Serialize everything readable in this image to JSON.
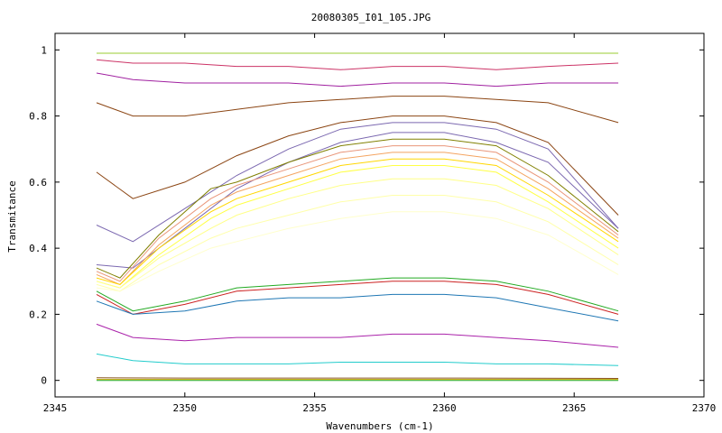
{
  "chart_data": {
    "type": "line",
    "title": "20080305_I01_105.JPG",
    "xlabel": "Wavenumbers (cm-1)",
    "ylabel": "Transmitance",
    "xlim": [
      2345,
      2370
    ],
    "ylim": [
      -0.05,
      1.05
    ],
    "xticks": [
      2345,
      2350,
      2355,
      2360,
      2365,
      2370
    ],
    "yticks": [
      0,
      0.2,
      0.4,
      0.6,
      0.8,
      1
    ],
    "ytick_labels": [
      "0",
      "0.2",
      "0.4",
      "0.6",
      "0.8",
      "1"
    ],
    "grid": false,
    "legend": "none",
    "x_range_of_data": [
      2346.6,
      2366.7
    ],
    "series": [
      {
        "color": "#9acd32",
        "x": [
          2346.6,
          2348,
          2350,
          2352,
          2354,
          2356,
          2358,
          2360,
          2362,
          2364,
          2366.7
        ],
        "y": [
          0.99,
          0.99,
          0.99,
          0.99,
          0.99,
          0.99,
          0.99,
          0.99,
          0.99,
          0.99,
          0.99
        ]
      },
      {
        "color": "#cc3366",
        "x": [
          2346.6,
          2348,
          2350,
          2352,
          2354,
          2356,
          2358,
          2360,
          2362,
          2364,
          2366.7
        ],
        "y": [
          0.97,
          0.96,
          0.96,
          0.95,
          0.95,
          0.94,
          0.95,
          0.95,
          0.94,
          0.95,
          0.96
        ]
      },
      {
        "color": "#a020a0",
        "x": [
          2346.6,
          2348,
          2350,
          2352,
          2354,
          2356,
          2358,
          2360,
          2362,
          2364,
          2366.7
        ],
        "y": [
          0.93,
          0.91,
          0.9,
          0.9,
          0.9,
          0.89,
          0.9,
          0.9,
          0.89,
          0.9,
          0.9
        ]
      },
      {
        "color": "#8b4513",
        "x": [
          2346.6,
          2348,
          2350,
          2352,
          2354,
          2356,
          2358,
          2360,
          2362,
          2364,
          2366.7
        ],
        "y": [
          0.84,
          0.8,
          0.8,
          0.82,
          0.84,
          0.85,
          0.86,
          0.86,
          0.85,
          0.84,
          0.78
        ]
      },
      {
        "color": "#8b4513",
        "x": [
          2346.6,
          2348,
          2350,
          2352,
          2354,
          2356,
          2358,
          2360,
          2362,
          2364,
          2366.7
        ],
        "y": [
          0.63,
          0.55,
          0.6,
          0.68,
          0.74,
          0.78,
          0.8,
          0.8,
          0.78,
          0.72,
          0.5
        ]
      },
      {
        "color": "#7b68b0",
        "x": [
          2346.6,
          2348,
          2350,
          2352,
          2354,
          2356,
          2358,
          2360,
          2362,
          2364,
          2366.7
        ],
        "y": [
          0.47,
          0.42,
          0.52,
          0.62,
          0.7,
          0.76,
          0.78,
          0.78,
          0.76,
          0.7,
          0.46
        ]
      },
      {
        "color": "#7b68b0",
        "x": [
          2346.6,
          2348,
          2350,
          2352,
          2354,
          2356,
          2358,
          2360,
          2362,
          2364,
          2366.7
        ],
        "y": [
          0.35,
          0.34,
          0.46,
          0.58,
          0.66,
          0.72,
          0.75,
          0.75,
          0.72,
          0.66,
          0.46
        ]
      },
      {
        "color": "#808000",
        "x": [
          2346.6,
          2347.5,
          2349,
          2351,
          2352,
          2354,
          2356,
          2358,
          2360,
          2362,
          2364,
          2366.7
        ],
        "y": [
          0.34,
          0.31,
          0.44,
          0.58,
          0.6,
          0.66,
          0.71,
          0.73,
          0.73,
          0.71,
          0.62,
          0.45
        ]
      },
      {
        "color": "#e9967a",
        "x": [
          2346.6,
          2347.5,
          2349,
          2351,
          2352,
          2354,
          2356,
          2358,
          2360,
          2362,
          2364,
          2366.7
        ],
        "y": [
          0.33,
          0.3,
          0.43,
          0.55,
          0.59,
          0.64,
          0.69,
          0.71,
          0.71,
          0.69,
          0.6,
          0.44
        ]
      },
      {
        "color": "#f4a460",
        "x": [
          2346.6,
          2347.5,
          2349,
          2351,
          2352,
          2354,
          2356,
          2358,
          2360,
          2362,
          2364,
          2366.7
        ],
        "y": [
          0.32,
          0.29,
          0.41,
          0.53,
          0.57,
          0.62,
          0.67,
          0.69,
          0.69,
          0.67,
          0.58,
          0.43
        ]
      },
      {
        "color": "#ffd700",
        "x": [
          2346.6,
          2347.5,
          2349,
          2351,
          2352,
          2354,
          2356,
          2358,
          2360,
          2362,
          2364,
          2366.7
        ],
        "y": [
          0.31,
          0.29,
          0.4,
          0.51,
          0.55,
          0.6,
          0.65,
          0.67,
          0.67,
          0.65,
          0.56,
          0.42
        ]
      },
      {
        "color": "#ffff44",
        "x": [
          2346.6,
          2347.5,
          2349,
          2351,
          2352,
          2354,
          2356,
          2358,
          2360,
          2362,
          2364,
          2366.7
        ],
        "y": [
          0.3,
          0.28,
          0.38,
          0.49,
          0.53,
          0.58,
          0.63,
          0.65,
          0.65,
          0.63,
          0.54,
          0.4
        ]
      },
      {
        "color": "#ffff88",
        "x": [
          2346.6,
          2347.5,
          2349,
          2351,
          2352,
          2354,
          2356,
          2358,
          2360,
          2362,
          2364,
          2366.7
        ],
        "y": [
          0.3,
          0.28,
          0.37,
          0.46,
          0.5,
          0.55,
          0.59,
          0.61,
          0.61,
          0.59,
          0.52,
          0.38
        ]
      },
      {
        "color": "#ffffaa",
        "x": [
          2346.6,
          2347.5,
          2349,
          2351,
          2352,
          2354,
          2356,
          2358,
          2360,
          2362,
          2364,
          2366.7
        ],
        "y": [
          0.29,
          0.27,
          0.35,
          0.43,
          0.46,
          0.5,
          0.54,
          0.56,
          0.56,
          0.54,
          0.48,
          0.35
        ]
      },
      {
        "color": "#ffffcc",
        "x": [
          2346.6,
          2347.5,
          2349,
          2351,
          2352,
          2354,
          2356,
          2358,
          2360,
          2362,
          2364,
          2366.7
        ],
        "y": [
          0.28,
          0.27,
          0.33,
          0.4,
          0.42,
          0.46,
          0.49,
          0.51,
          0.51,
          0.49,
          0.44,
          0.32
        ]
      },
      {
        "color": "#22aa22",
        "x": [
          2346.6,
          2348,
          2350,
          2352,
          2354,
          2356,
          2358,
          2360,
          2362,
          2364,
          2366.7
        ],
        "y": [
          0.27,
          0.21,
          0.24,
          0.28,
          0.29,
          0.3,
          0.31,
          0.31,
          0.3,
          0.27,
          0.21
        ]
      },
      {
        "color": "#cc2222",
        "x": [
          2346.6,
          2348,
          2350,
          2352,
          2354,
          2356,
          2358,
          2360,
          2362,
          2364,
          2366.7
        ],
        "y": [
          0.26,
          0.2,
          0.23,
          0.27,
          0.28,
          0.29,
          0.3,
          0.3,
          0.29,
          0.26,
          0.2
        ]
      },
      {
        "color": "#1f77b4",
        "x": [
          2346.6,
          2348,
          2350,
          2352,
          2354,
          2356,
          2358,
          2360,
          2362,
          2364,
          2366.7
        ],
        "y": [
          0.24,
          0.2,
          0.21,
          0.24,
          0.25,
          0.25,
          0.26,
          0.26,
          0.25,
          0.22,
          0.18
        ]
      },
      {
        "color": "#aa22aa",
        "x": [
          2346.6,
          2348,
          2350,
          2352,
          2354,
          2356,
          2358,
          2360,
          2362,
          2364,
          2366.7
        ],
        "y": [
          0.17,
          0.13,
          0.12,
          0.13,
          0.13,
          0.13,
          0.14,
          0.14,
          0.13,
          0.12,
          0.1
        ]
      },
      {
        "color": "#22cccc",
        "x": [
          2346.6,
          2348,
          2350,
          2352,
          2354,
          2356,
          2358,
          2360,
          2362,
          2364,
          2366.7
        ],
        "y": [
          0.08,
          0.06,
          0.05,
          0.05,
          0.05,
          0.055,
          0.055,
          0.055,
          0.05,
          0.05,
          0.045
        ]
      },
      {
        "color": "#885522",
        "x": [
          2346.6,
          2350,
          2355,
          2360,
          2366.7
        ],
        "y": [
          0.008,
          0.007,
          0.007,
          0.007,
          0.006
        ]
      },
      {
        "color": "#ccaa00",
        "x": [
          2346.6,
          2350,
          2355,
          2360,
          2366.7
        ],
        "y": [
          0.003,
          0.003,
          0.003,
          0.003,
          0.003
        ]
      },
      {
        "color": "#22aa22",
        "x": [
          2346.6,
          2350,
          2355,
          2360,
          2366.7
        ],
        "y": [
          0.0,
          0.0,
          0.0,
          0.0,
          0.0
        ]
      }
    ]
  }
}
